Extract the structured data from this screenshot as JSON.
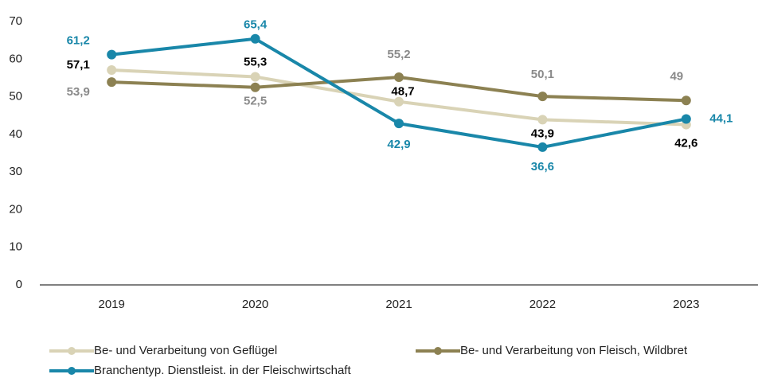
{
  "chart_data": {
    "type": "line",
    "categories": [
      "2019",
      "2020",
      "2021",
      "2022",
      "2023"
    ],
    "series": [
      {
        "name": "Be- und Verarbeitung von Geflügel",
        "color": "#d9d3b6",
        "label_color": "#000000",
        "values": [
          57.1,
          55.3,
          48.7,
          43.9,
          42.6
        ],
        "value_labels": [
          "57,1",
          "55,3",
          "48,7",
          "43,9",
          "42,6"
        ]
      },
      {
        "name": "Be- und Verarbeitung von Fleisch, Wildbret",
        "color": "#8c8152",
        "label_color": "#8a8a8a",
        "values": [
          53.9,
          52.5,
          55.2,
          50.1,
          49
        ],
        "value_labels": [
          "53,9",
          "52,5",
          "55,2",
          "50,1",
          "49"
        ]
      },
      {
        "name": "Branchentyp. Dienstleist. in der Fleischwirtschaft",
        "color": "#1987a9",
        "label_color": "#1987a9",
        "values": [
          61.2,
          65.4,
          42.9,
          36.6,
          44.1
        ],
        "value_labels": [
          "61,2",
          "65,4",
          "42,9",
          "36,6",
          "44,1"
        ]
      }
    ],
    "ylim": [
      0,
      70
    ],
    "yticks": [
      0,
      10,
      20,
      30,
      40,
      50,
      60,
      70
    ],
    "grid": false
  }
}
